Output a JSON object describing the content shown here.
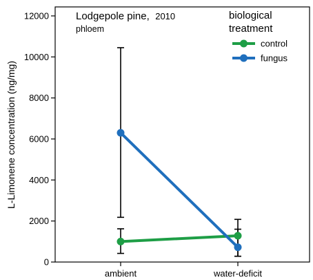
{
  "chart_data": {
    "type": "line",
    "title": "Lodgepole pine,",
    "title_year": "2010",
    "subtitle": "phloem",
    "ylabel": "L-Limonene concentration (ng/mg)",
    "xlabel": "",
    "categories": [
      "ambient",
      "water-deficit"
    ],
    "ylim": [
      0,
      12000
    ],
    "yticks": [
      0,
      2000,
      4000,
      6000,
      8000,
      10000,
      12000
    ],
    "legend_title": [
      "biological",
      "treatment"
    ],
    "legend_position": "top-right",
    "grid": false,
    "series": [
      {
        "name": "control",
        "color": "#1e9e46",
        "values": [
          1000,
          1280
        ],
        "error_low": [
          420,
          280
        ],
        "error_high": [
          1620,
          2080
        ]
      },
      {
        "name": "fungus",
        "color": "#1f6fbd",
        "values": [
          6300,
          720
        ],
        "error_low": [
          2180,
          280
        ],
        "error_high": [
          10450,
          1600
        ]
      }
    ]
  }
}
